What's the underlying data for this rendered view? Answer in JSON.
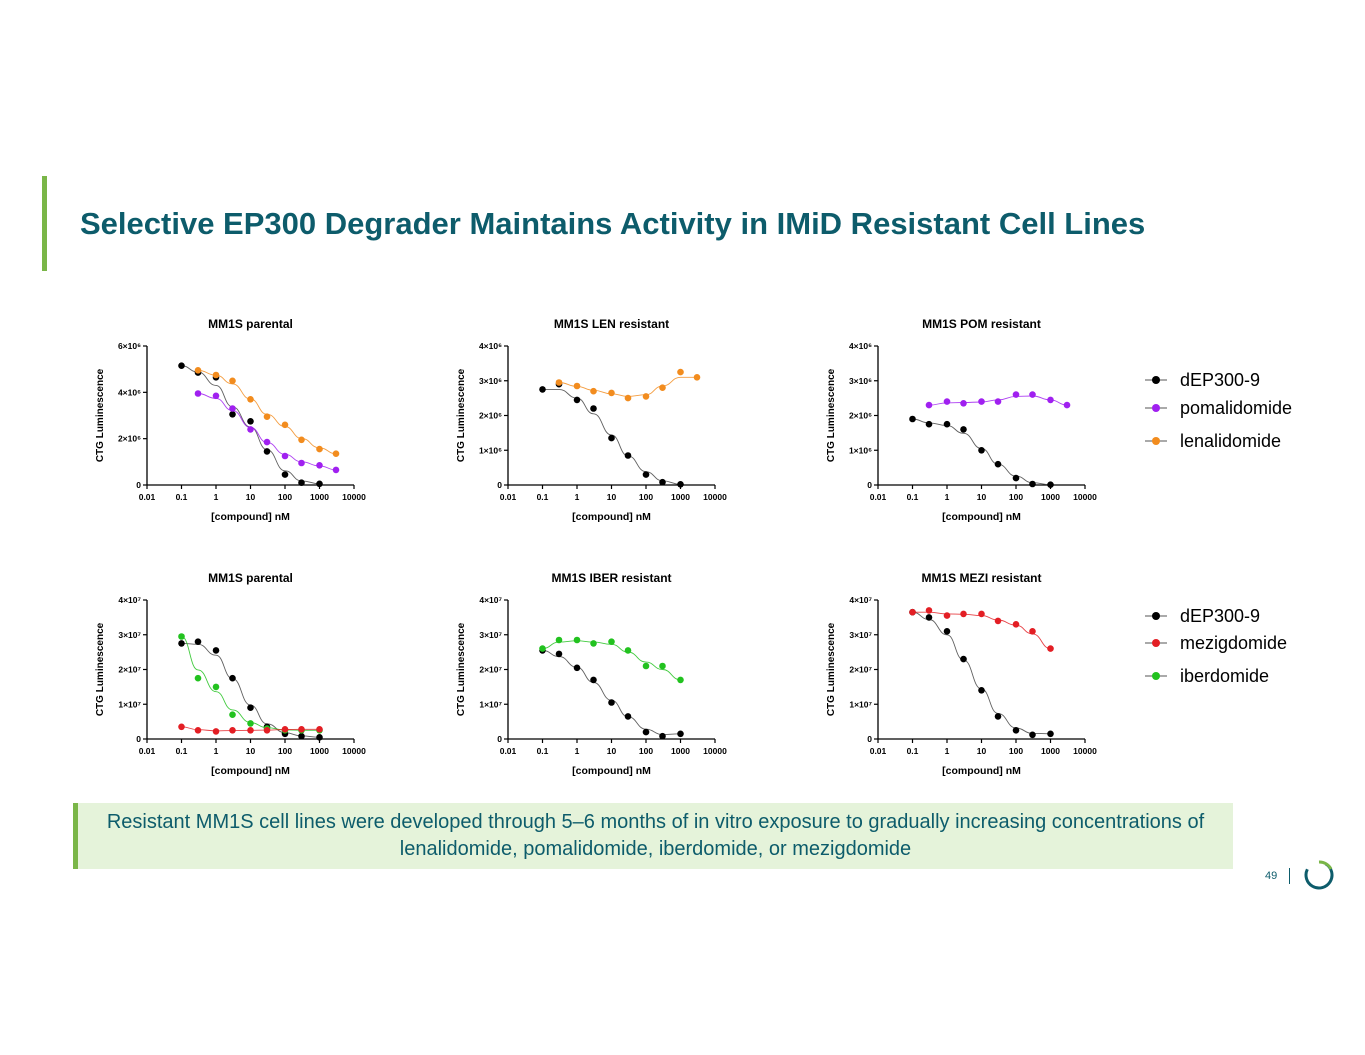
{
  "title": "Selective EP300 Degrader Maintains Activity in IMiD Resistant Cell Lines",
  "callout": "Resistant MM1S cell lines were developed through 5–6 months of in vitro exposure to gradually increasing concentrations of lenalidomide, pomalidomide, iberdomide, or mezigdomide",
  "page_number": "49",
  "colors": {
    "title": "#0d5c6b",
    "accent": "#7ab648",
    "black": "#000000",
    "purple": "#a020f0",
    "orange": "#f28c1e",
    "red": "#e31e24",
    "green": "#22c21f",
    "callout_bg": "#e5f3da"
  },
  "legends": [
    {
      "items": [
        {
          "label": "dEP300-9",
          "color": "#000000"
        },
        {
          "label": "pomalidomide",
          "color": "#a020f0"
        },
        {
          "label": "lenalidomide",
          "color": "#f28c1e"
        }
      ]
    },
    {
      "items": [
        {
          "label": "dEP300-9",
          "color": "#000000"
        },
        {
          "label": "mezigdomide",
          "color": "#e31e24"
        },
        {
          "label": "iberdomide",
          "color": "#22c21f"
        }
      ]
    }
  ],
  "chart_data": [
    {
      "type": "scatter",
      "title": "MM1S parental",
      "xlabel": "[compound] nM",
      "ylabel": "CTG Luminescence",
      "xscale": "log",
      "xlim": [
        0.01,
        10000
      ],
      "ylim": [
        0,
        6000000
      ],
      "xticks": [
        "0.01",
        "0.1",
        "1",
        "10",
        "100",
        "1000",
        "10000"
      ],
      "yticks": [
        {
          "v": 0,
          "label": "0"
        },
        {
          "v": 2000000,
          "label": "2×10⁶"
        },
        {
          "v": 4000000,
          "label": "4×10⁶"
        },
        {
          "v": 6000000,
          "label": "6×10⁶"
        }
      ],
      "series": [
        {
          "name": "dEP300-9",
          "color": "#000000",
          "x": [
            0.1,
            0.3,
            1,
            3,
            10,
            30,
            100,
            300,
            1000
          ],
          "y": [
            5150000,
            4850000,
            4650000,
            3050000,
            2750000,
            1450000,
            450000,
            100000,
            50000
          ]
        },
        {
          "name": "pomalidomide",
          "color": "#a020f0",
          "x": [
            0.3,
            1,
            3,
            10,
            30,
            100,
            300,
            1000,
            3000
          ],
          "y": [
            3950000,
            3850000,
            3300000,
            2400000,
            1850000,
            1250000,
            950000,
            850000,
            650000
          ]
        },
        {
          "name": "lenalidomide",
          "color": "#f28c1e",
          "x": [
            0.3,
            1,
            3,
            10,
            30,
            100,
            300,
            1000,
            3000
          ],
          "y": [
            4950000,
            4750000,
            4500000,
            3700000,
            2950000,
            2600000,
            1950000,
            1550000,
            1350000
          ]
        }
      ]
    },
    {
      "type": "scatter",
      "title": "MM1S LEN resistant",
      "xlabel": "[compound] nM",
      "ylabel": "CTG Luminescence",
      "xscale": "log",
      "xlim": [
        0.01,
        10000
      ],
      "ylim": [
        0,
        4000000
      ],
      "xticks": [
        "0.01",
        "0.1",
        "1",
        "10",
        "100",
        "1000",
        "10000"
      ],
      "yticks": [
        {
          "v": 0,
          "label": "0"
        },
        {
          "v": 1000000,
          "label": "1×10⁶"
        },
        {
          "v": 2000000,
          "label": "2×10⁶"
        },
        {
          "v": 3000000,
          "label": "3×10⁶"
        },
        {
          "v": 4000000,
          "label": "4×10⁶"
        }
      ],
      "series": [
        {
          "name": "dEP300-9",
          "color": "#000000",
          "x": [
            0.1,
            0.3,
            1,
            3,
            10,
            30,
            100,
            300,
            1000
          ],
          "y": [
            2750000,
            2900000,
            2450000,
            2200000,
            1350000,
            850000,
            300000,
            80000,
            20000
          ]
        },
        {
          "name": "lenalidomide",
          "color": "#f28c1e",
          "x": [
            0.3,
            1,
            3,
            10,
            30,
            100,
            300,
            1000,
            3000
          ],
          "y": [
            2950000,
            2850000,
            2700000,
            2650000,
            2500000,
            2550000,
            2800000,
            3250000,
            3100000
          ]
        }
      ]
    },
    {
      "type": "scatter",
      "title": "MM1S POM resistant",
      "xlabel": "[compound] nM",
      "ylabel": "CTG Luminescence",
      "xscale": "log",
      "xlim": [
        0.01,
        10000
      ],
      "ylim": [
        0,
        4000000
      ],
      "xticks": [
        "0.01",
        "0.1",
        "1",
        "10",
        "100",
        "1000",
        "10000"
      ],
      "yticks": [
        {
          "v": 0,
          "label": "0"
        },
        {
          "v": 1000000,
          "label": "1×10⁶"
        },
        {
          "v": 2000000,
          "label": "2×10⁶"
        },
        {
          "v": 3000000,
          "label": "3×10⁶"
        },
        {
          "v": 4000000,
          "label": "4×10⁶"
        }
      ],
      "series": [
        {
          "name": "dEP300-9",
          "color": "#000000",
          "x": [
            0.1,
            0.3,
            1,
            3,
            10,
            30,
            100,
            300,
            1000
          ],
          "y": [
            1900000,
            1750000,
            1750000,
            1600000,
            1000000,
            600000,
            200000,
            30000,
            10000
          ]
        },
        {
          "name": "pomalidomide",
          "color": "#a020f0",
          "x": [
            0.3,
            1,
            3,
            10,
            30,
            100,
            300,
            1000,
            3000
          ],
          "y": [
            2300000,
            2400000,
            2350000,
            2400000,
            2400000,
            2600000,
            2600000,
            2450000,
            2300000
          ]
        }
      ]
    },
    {
      "type": "scatter",
      "title": "MM1S parental",
      "xlabel": "[compound] nM",
      "ylabel": "CTG Luminescence",
      "xscale": "log",
      "xlim": [
        0.01,
        10000
      ],
      "ylim": [
        0,
        40000000
      ],
      "xticks": [
        "0.01",
        "0.1",
        "1",
        "10",
        "100",
        "1000",
        "10000"
      ],
      "yticks": [
        {
          "v": 0,
          "label": "0"
        },
        {
          "v": 10000000,
          "label": "1×10⁷"
        },
        {
          "v": 20000000,
          "label": "2×10⁷"
        },
        {
          "v": 30000000,
          "label": "3×10⁷"
        },
        {
          "v": 40000000,
          "label": "4×10⁷"
        }
      ],
      "series": [
        {
          "name": "dEP300-9",
          "color": "#000000",
          "x": [
            0.1,
            0.3,
            1,
            3,
            10,
            30,
            100,
            300,
            1000
          ],
          "y": [
            27500000,
            28000000,
            25500000,
            17500000,
            9000000,
            3500000,
            1500000,
            800000,
            500000
          ]
        },
        {
          "name": "iberdomide",
          "color": "#22c21f",
          "x": [
            0.1,
            0.3,
            1,
            3,
            10,
            30,
            100,
            300,
            1000
          ],
          "y": [
            29500000,
            17500000,
            15000000,
            7000000,
            4500000,
            3000000,
            2500000,
            2500000,
            2500000
          ]
        },
        {
          "name": "mezigdomide",
          "color": "#e31e24",
          "x": [
            0.1,
            0.3,
            1,
            3,
            10,
            30,
            100,
            300,
            1000
          ],
          "y": [
            3500000,
            2500000,
            2200000,
            2500000,
            2500000,
            2500000,
            2800000,
            2800000,
            2800000
          ]
        }
      ]
    },
    {
      "type": "scatter",
      "title": "MM1S IBER resistant",
      "xlabel": "[compound] nM",
      "ylabel": "CTG Luminescence",
      "xscale": "log",
      "xlim": [
        0.01,
        10000
      ],
      "ylim": [
        0,
        40000000
      ],
      "xticks": [
        "0.01",
        "0.1",
        "1",
        "10",
        "100",
        "1000",
        "10000"
      ],
      "yticks": [
        {
          "v": 0,
          "label": "0"
        },
        {
          "v": 10000000,
          "label": "1×10⁷"
        },
        {
          "v": 20000000,
          "label": "2×10⁷"
        },
        {
          "v": 30000000,
          "label": "3×10⁷"
        },
        {
          "v": 40000000,
          "label": "4×10⁷"
        }
      ],
      "series": [
        {
          "name": "dEP300-9",
          "color": "#000000",
          "x": [
            0.1,
            0.3,
            1,
            3,
            10,
            30,
            100,
            300,
            1000
          ],
          "y": [
            25500000,
            24500000,
            20500000,
            17000000,
            10500000,
            6500000,
            2000000,
            800000,
            1500000
          ]
        },
        {
          "name": "iberdomide",
          "color": "#22c21f",
          "x": [
            0.1,
            0.3,
            1,
            3,
            10,
            30,
            100,
            300,
            1000
          ],
          "y": [
            26000000,
            28500000,
            28500000,
            27500000,
            28000000,
            25500000,
            21000000,
            21000000,
            17000000
          ]
        }
      ]
    },
    {
      "type": "scatter",
      "title": "MM1S MEZI resistant",
      "xlabel": "[compound] nM",
      "ylabel": "CTG Luminescence",
      "xscale": "log",
      "xlim": [
        0.01,
        10000
      ],
      "ylim": [
        0,
        40000000
      ],
      "xticks": [
        "0.01",
        "0.1",
        "1",
        "10",
        "100",
        "1000",
        "10000"
      ],
      "yticks": [
        {
          "v": 0,
          "label": "0"
        },
        {
          "v": 10000000,
          "label": "1×10⁷"
        },
        {
          "v": 20000000,
          "label": "2×10⁷"
        },
        {
          "v": 30000000,
          "label": "3×10⁷"
        },
        {
          "v": 40000000,
          "label": "4×10⁷"
        }
      ],
      "series": [
        {
          "name": "dEP300-9",
          "color": "#000000",
          "x": [
            0.1,
            0.3,
            1,
            3,
            10,
            30,
            100,
            300,
            1000
          ],
          "y": [
            36500000,
            35000000,
            31000000,
            23000000,
            14000000,
            6500000,
            2500000,
            1200000,
            1500000
          ]
        },
        {
          "name": "mezigdomide",
          "color": "#e31e24",
          "x": [
            0.1,
            0.3,
            1,
            3,
            10,
            30,
            100,
            300,
            1000
          ],
          "y": [
            36500000,
            37000000,
            35500000,
            36000000,
            36000000,
            34000000,
            33000000,
            31000000,
            26000000
          ]
        }
      ]
    }
  ]
}
